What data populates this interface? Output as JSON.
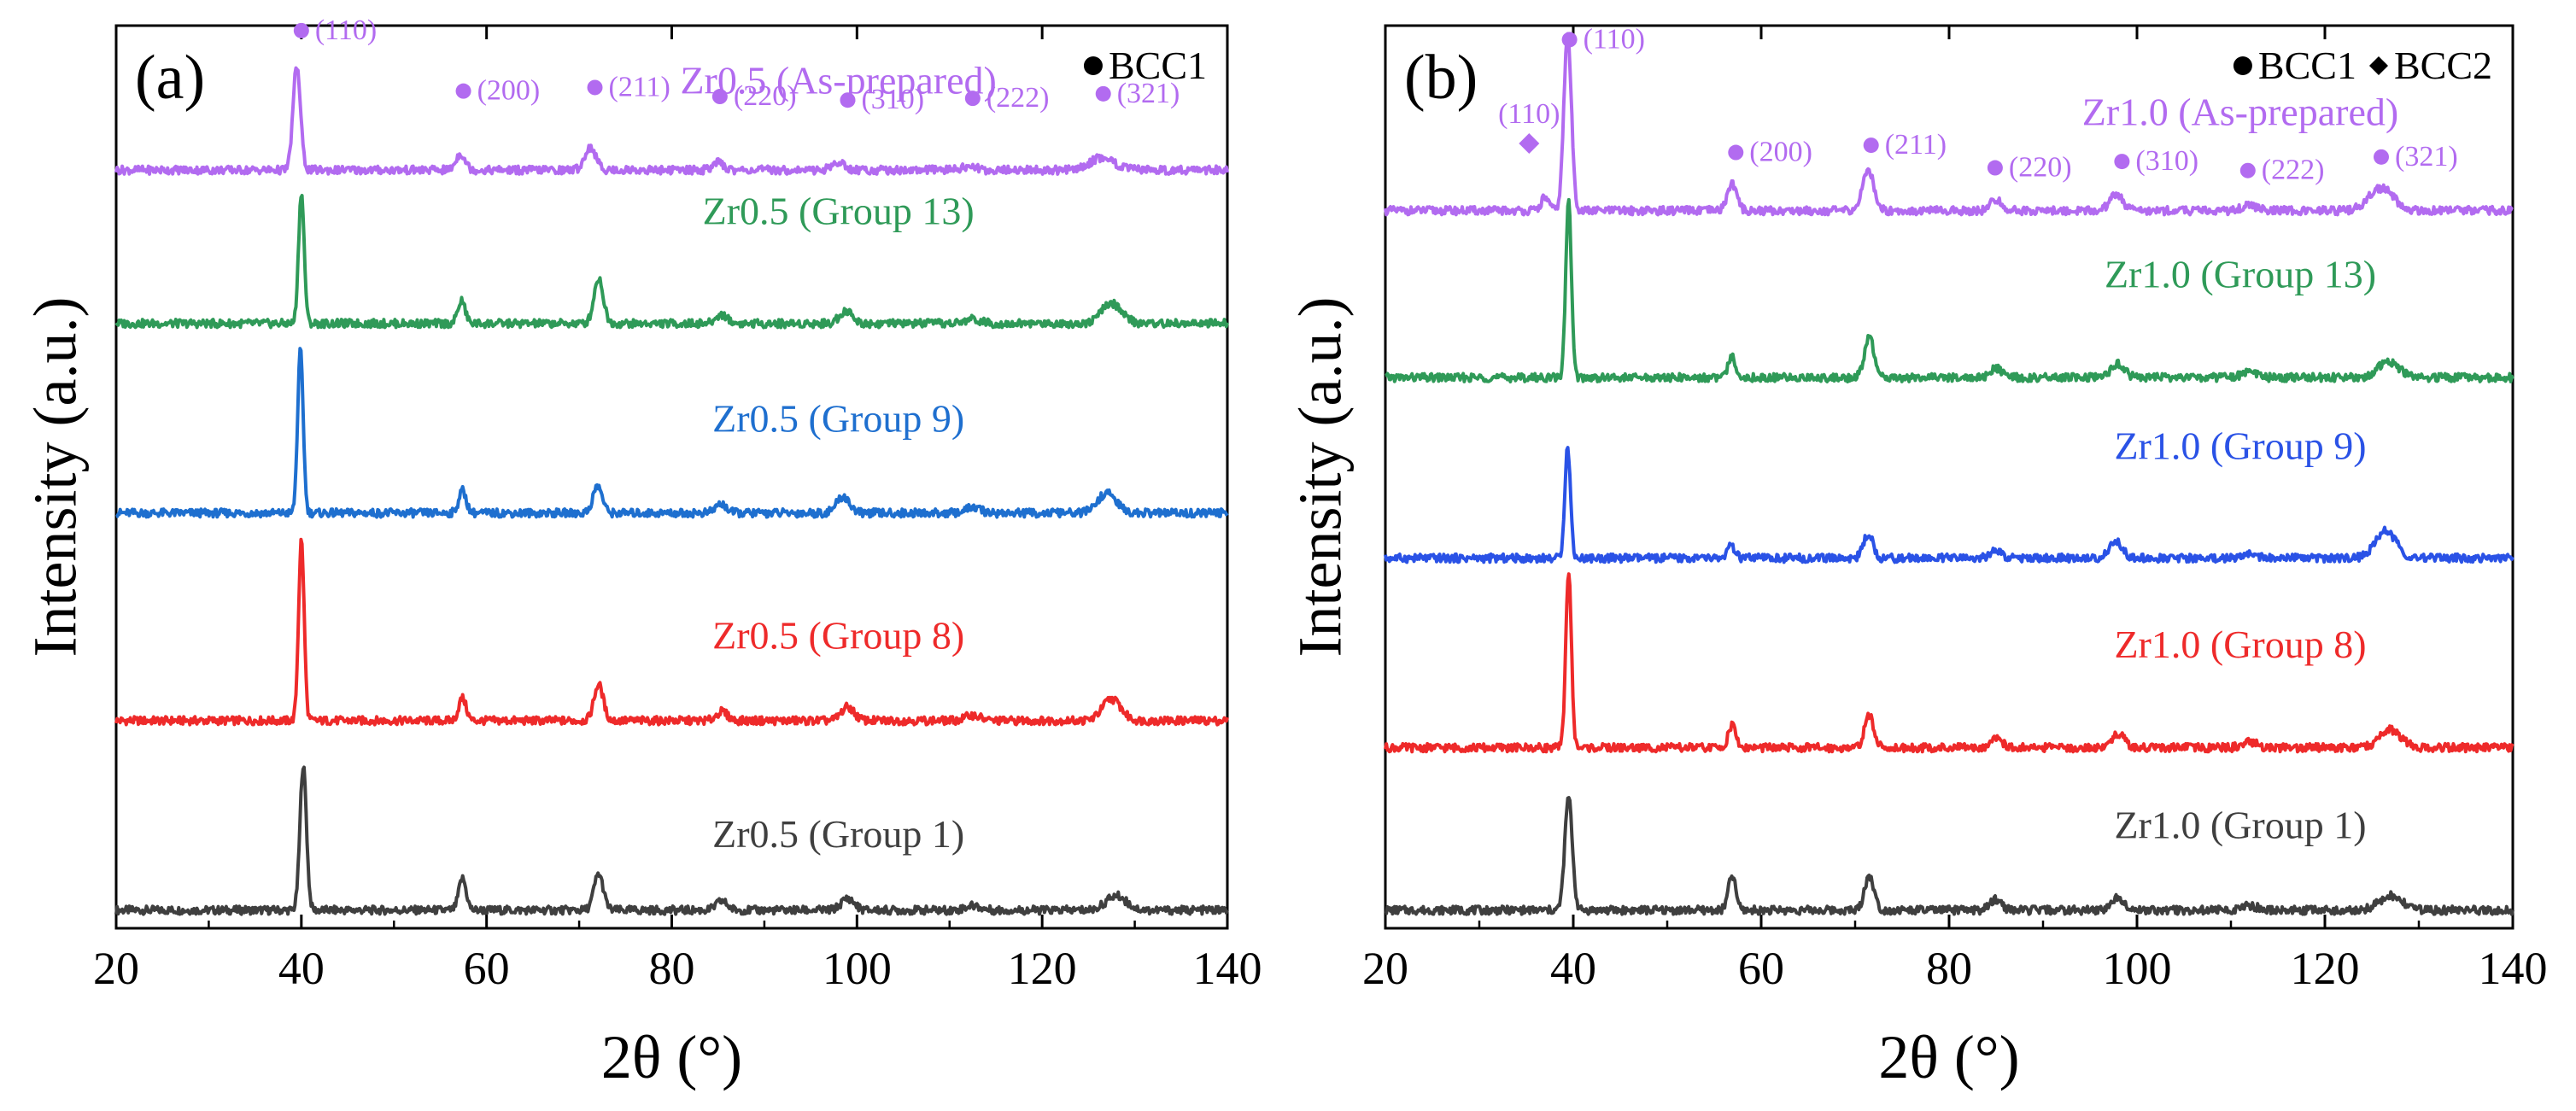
{
  "figure": {
    "panels": [
      {
        "id": "a",
        "panel_label": "(a)",
        "legend": [
          {
            "symbol": "circle",
            "label": "BCC1"
          }
        ],
        "ylabel": "Intensity (a.u.)",
        "xlabel": "2θ (°)"
      },
      {
        "id": "b",
        "panel_label": "(b)",
        "legend": [
          {
            "symbol": "circle",
            "label": "BCC1"
          },
          {
            "symbol": "diamond",
            "label": "BCC2"
          }
        ],
        "ylabel": "Intensity (a.u.)",
        "xlabel": "2θ (°)"
      }
    ]
  },
  "chart_data": [
    {
      "type": "line",
      "title": "(a)",
      "xlabel": "2θ (°)",
      "ylabel": "Intensity (a.u.)",
      "xlim": [
        20,
        140
      ],
      "x_ticks": [
        20,
        40,
        60,
        80,
        100,
        120,
        140
      ],
      "x_tick_labels": [
        "20",
        "40",
        "60",
        "80",
        "100",
        "120",
        "140"
      ],
      "ylim": [
        0,
        100
      ],
      "y_ticks": [],
      "grid": false,
      "legend_position": "top-right",
      "legend": [
        {
          "symbol": "circle",
          "label": "BCC1"
        }
      ],
      "series": [
        {
          "name": "Zr0.5 (Group 1)",
          "color": "#3f3f3f",
          "baseline": 2,
          "label_x": 98,
          "label_y": 9,
          "peaks": [
            {
              "x": 40.2,
              "h": 16,
              "w": 0.35
            },
            {
              "x": 57.4,
              "h": 3.5,
              "w": 0.4
            },
            {
              "x": 72.1,
              "h": 4,
              "w": 0.5
            },
            {
              "x": 85.4,
              "h": 1,
              "w": 0.6
            },
            {
              "x": 99.0,
              "h": 1.3,
              "w": 0.7
            },
            {
              "x": 112.5,
              "h": 0.5,
              "w": 0.8
            },
            {
              "x": 128.0,
              "h": 1.6,
              "w": 1.1
            }
          ]
        },
        {
          "name": "Zr0.5 (Group 8)",
          "color": "#ee2a2a",
          "baseline": 23,
          "label_x": 98,
          "label_y": 31,
          "peaks": [
            {
              "x": 40.0,
              "h": 20,
              "w": 0.3
            },
            {
              "x": 57.4,
              "h": 2.5,
              "w": 0.4
            },
            {
              "x": 72.1,
              "h": 4,
              "w": 0.5
            },
            {
              "x": 85.4,
              "h": 1,
              "w": 0.6
            },
            {
              "x": 99.0,
              "h": 1.5,
              "w": 0.7
            },
            {
              "x": 112.5,
              "h": 0.6,
              "w": 0.8
            },
            {
              "x": 127.5,
              "h": 2.4,
              "w": 1.0
            }
          ]
        },
        {
          "name": "Zr0.5 (Group 9)",
          "color": "#1e6fcf",
          "baseline": 46,
          "label_x": 98,
          "label_y": 55,
          "peaks": [
            {
              "x": 39.9,
              "h": 18,
              "w": 0.3
            },
            {
              "x": 57.4,
              "h": 2.5,
              "w": 0.4
            },
            {
              "x": 72.0,
              "h": 3,
              "w": 0.5
            },
            {
              "x": 85.3,
              "h": 1,
              "w": 0.6
            },
            {
              "x": 98.5,
              "h": 1.8,
              "w": 0.7
            },
            {
              "x": 112.5,
              "h": 0.6,
              "w": 0.8
            },
            {
              "x": 127.0,
              "h": 2.2,
              "w": 1.0
            }
          ]
        },
        {
          "name": "Zr0.5 (Group 13)",
          "color": "#2f9a58",
          "baseline": 67,
          "label_x": 98,
          "label_y": 78,
          "peaks": [
            {
              "x": 40.0,
              "h": 14.5,
              "w": 0.3
            },
            {
              "x": 57.3,
              "h": 2.5,
              "w": 0.4
            },
            {
              "x": 72.1,
              "h": 5,
              "w": 0.5
            },
            {
              "x": 85.4,
              "h": 1,
              "w": 0.6
            },
            {
              "x": 98.8,
              "h": 1.4,
              "w": 0.7
            },
            {
              "x": 112.5,
              "h": 0.5,
              "w": 0.8
            },
            {
              "x": 127.5,
              "h": 2.2,
              "w": 1.1
            }
          ]
        },
        {
          "name": "Zr0.5 (As-prepared)",
          "color": "#b26bf0",
          "baseline": 84,
          "label_x": 98,
          "label_y": 92.5,
          "peaks": [
            {
              "x": 39.5,
              "h": 11.5,
              "w": 0.4
            },
            {
              "x": 57.2,
              "h": 1.8,
              "w": 0.5
            },
            {
              "x": 71.2,
              "h": 2.5,
              "w": 0.6
            },
            {
              "x": 85.0,
              "h": 0.8,
              "w": 0.6
            },
            {
              "x": 98.0,
              "h": 0.8,
              "w": 0.7
            },
            {
              "x": 112.0,
              "h": 0.4,
              "w": 0.8
            },
            {
              "x": 126.5,
              "h": 1.4,
              "w": 1.3
            }
          ]
        }
      ],
      "annotations": [
        {
          "text": "(110)",
          "x": 40.0,
          "y": 98.5,
          "marker": "circle",
          "color": "#b26bf0"
        },
        {
          "text": "(200)",
          "x": 57.5,
          "y": 91.8,
          "marker": "circle",
          "color": "#b26bf0"
        },
        {
          "text": "(211)",
          "x": 71.7,
          "y": 92.2,
          "marker": "circle",
          "color": "#b26bf0"
        },
        {
          "text": "(220)",
          "x": 85.2,
          "y": 91.2,
          "marker": "circle",
          "color": "#b26bf0"
        },
        {
          "text": "(310)",
          "x": 99.0,
          "y": 90.8,
          "marker": "circle",
          "color": "#b26bf0"
        },
        {
          "text": "(222)",
          "x": 112.5,
          "y": 91.0,
          "marker": "circle",
          "color": "#b26bf0"
        },
        {
          "text": "(321)",
          "x": 126.6,
          "y": 91.5,
          "marker": "circle",
          "color": "#b26bf0"
        }
      ]
    },
    {
      "type": "line",
      "title": "(b)",
      "xlabel": "2θ (°)",
      "ylabel": "Intensity (a.u.)",
      "xlim": [
        20,
        140
      ],
      "x_ticks": [
        20,
        40,
        60,
        80,
        100,
        120,
        140
      ],
      "x_tick_labels": [
        "20",
        "40",
        "60",
        "80",
        "100",
        "120",
        "140"
      ],
      "ylim": [
        0,
        100
      ],
      "y_ticks": [],
      "grid": false,
      "legend_position": "top-right",
      "legend": [
        {
          "symbol": "circle",
          "label": "BCC1"
        },
        {
          "symbol": "diamond",
          "label": "BCC2"
        }
      ],
      "series": [
        {
          "name": "Zr1.0 (Group 1)",
          "color": "#3f3f3f",
          "baseline": 2,
          "label_x": 111,
          "label_y": 10,
          "peaks": [
            {
              "x": 39.5,
              "h": 12.5,
              "w": 0.4
            },
            {
              "x": 56.9,
              "h": 3.8,
              "w": 0.4
            },
            {
              "x": 71.5,
              "h": 3.8,
              "w": 0.5
            },
            {
              "x": 85.0,
              "h": 1.2,
              "w": 0.6
            },
            {
              "x": 98.0,
              "h": 1.4,
              "w": 0.7
            },
            {
              "x": 112.0,
              "h": 0.5,
              "w": 0.8
            },
            {
              "x": 127.0,
              "h": 1.6,
              "w": 1.2
            }
          ]
        },
        {
          "name": "Zr1.0 (Group 8)",
          "color": "#ee2a2a",
          "baseline": 20,
          "label_x": 111,
          "label_y": 30,
          "peaks": [
            {
              "x": 39.5,
              "h": 19.5,
              "w": 0.3
            },
            {
              "x": 56.9,
              "h": 2.5,
              "w": 0.4
            },
            {
              "x": 71.5,
              "h": 3.5,
              "w": 0.5
            },
            {
              "x": 85.0,
              "h": 1.2,
              "w": 0.6
            },
            {
              "x": 98.0,
              "h": 1.5,
              "w": 0.7
            },
            {
              "x": 112.0,
              "h": 0.6,
              "w": 0.8
            },
            {
              "x": 127.0,
              "h": 2.0,
              "w": 1.1
            }
          ]
        },
        {
          "name": "Zr1.0 (Group 9)",
          "color": "#2a52e6",
          "baseline": 41,
          "label_x": 111,
          "label_y": 52,
          "peaks": [
            {
              "x": 39.4,
              "h": 12.3,
              "w": 0.3
            },
            {
              "x": 56.8,
              "h": 1.3,
              "w": 0.4
            },
            {
              "x": 71.4,
              "h": 2.7,
              "w": 0.5
            },
            {
              "x": 85.0,
              "h": 0.8,
              "w": 0.6
            },
            {
              "x": 97.8,
              "h": 1.8,
              "w": 0.7
            },
            {
              "x": 112.0,
              "h": 0.5,
              "w": 0.8
            },
            {
              "x": 126.5,
              "h": 3.0,
              "w": 1.1
            }
          ]
        },
        {
          "name": "Zr1.0 (Group 13)",
          "color": "#2f9a58",
          "baseline": 61,
          "label_x": 111,
          "label_y": 71,
          "peaks": [
            {
              "x": 39.5,
              "h": 19.5,
              "w": 0.3
            },
            {
              "x": 56.9,
              "h": 2.3,
              "w": 0.4
            },
            {
              "x": 71.5,
              "h": 4.5,
              "w": 0.5
            },
            {
              "x": 85.0,
              "h": 1.0,
              "w": 0.6
            },
            {
              "x": 98.0,
              "h": 1.5,
              "w": 0.7
            },
            {
              "x": 112.0,
              "h": 0.6,
              "w": 0.8
            },
            {
              "x": 126.8,
              "h": 1.8,
              "w": 1.1
            }
          ]
        },
        {
          "name": "Zr1.0 (As-prepared)",
          "color": "#b26bf0",
          "baseline": 79.5,
          "label_x": 111,
          "label_y": 89,
          "peaks": [
            {
              "x": 37.0,
              "h": 1.5,
              "w": 0.4
            },
            {
              "x": 39.4,
              "h": 19.5,
              "w": 0.4
            },
            {
              "x": 56.9,
              "h": 3.0,
              "w": 0.5
            },
            {
              "x": 71.4,
              "h": 4.5,
              "w": 0.6
            },
            {
              "x": 85.0,
              "h": 1.2,
              "w": 0.6
            },
            {
              "x": 97.8,
              "h": 1.8,
              "w": 0.7
            },
            {
              "x": 112.0,
              "h": 0.6,
              "w": 0.8
            },
            {
              "x": 126.0,
              "h": 2.5,
              "w": 1.3
            }
          ]
        }
      ],
      "annotations": [
        {
          "text": "(110)",
          "x": 39.6,
          "y": 97.5,
          "marker": "circle",
          "color": "#b26bf0"
        },
        {
          "text": "(110)",
          "x": 35.3,
          "y": 86.0,
          "marker": "diamond",
          "color": "#b26bf0"
        },
        {
          "text": "(200)",
          "x": 57.3,
          "y": 85.0,
          "marker": "circle",
          "color": "#b26bf0"
        },
        {
          "text": "(211)",
          "x": 71.7,
          "y": 85.8,
          "marker": "circle",
          "color": "#b26bf0"
        },
        {
          "text": "(220)",
          "x": 84.9,
          "y": 83.3,
          "marker": "circle",
          "color": "#b26bf0"
        },
        {
          "text": "(310)",
          "x": 98.4,
          "y": 84.0,
          "marker": "circle",
          "color": "#b26bf0"
        },
        {
          "text": "(222)",
          "x": 111.8,
          "y": 83.0,
          "marker": "circle",
          "color": "#b26bf0"
        },
        {
          "text": "(321)",
          "x": 126.0,
          "y": 84.5,
          "marker": "circle",
          "color": "#b26bf0"
        }
      ]
    }
  ]
}
